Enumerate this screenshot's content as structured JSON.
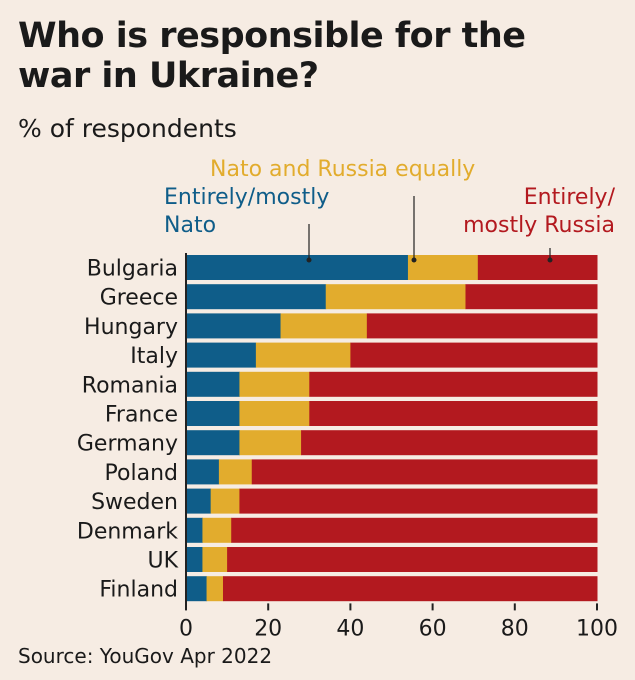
{
  "chart_data": {
    "type": "bar",
    "stacked": true,
    "orientation": "horizontal",
    "title": "Who is responsible for the war in Ukraine?",
    "subtitle": "% of respondents",
    "categories": [
      "Bulgaria",
      "Greece",
      "Hungary",
      "Italy",
      "Romania",
      "France",
      "Germany",
      "Poland",
      "Sweden",
      "Denmark",
      "UK",
      "Finland"
    ],
    "series": [
      {
        "name": "Entirely/mostly Nato",
        "color": "#0f5d89",
        "values": [
          54,
          34,
          23,
          17,
          13,
          13,
          13,
          8,
          6,
          4,
          4,
          5
        ]
      },
      {
        "name": "Nato and Russia equally",
        "color": "#e2ac2d",
        "values": [
          17,
          34,
          21,
          23,
          17,
          17,
          15,
          8,
          7,
          7,
          6,
          4
        ]
      },
      {
        "name": "Entirely/mostly Russia",
        "color": "#b3191f",
        "values": [
          29,
          32,
          56,
          60,
          70,
          70,
          72,
          84,
          87,
          89,
          90,
          91
        ]
      }
    ],
    "xlim": [
      0,
      100
    ],
    "xticks": [
      "0",
      "20",
      "40",
      "60",
      "80",
      "100"
    ],
    "legend_placement": "top, annotated",
    "source": "Source: YouGov Apr 2022"
  },
  "legend": {
    "nato_line1": "Entirely/mostly",
    "nato_line2": "Nato",
    "equal": "Nato and Russia equally",
    "russia_line1": "Entirely/",
    "russia_line2": "mostly Russia"
  }
}
